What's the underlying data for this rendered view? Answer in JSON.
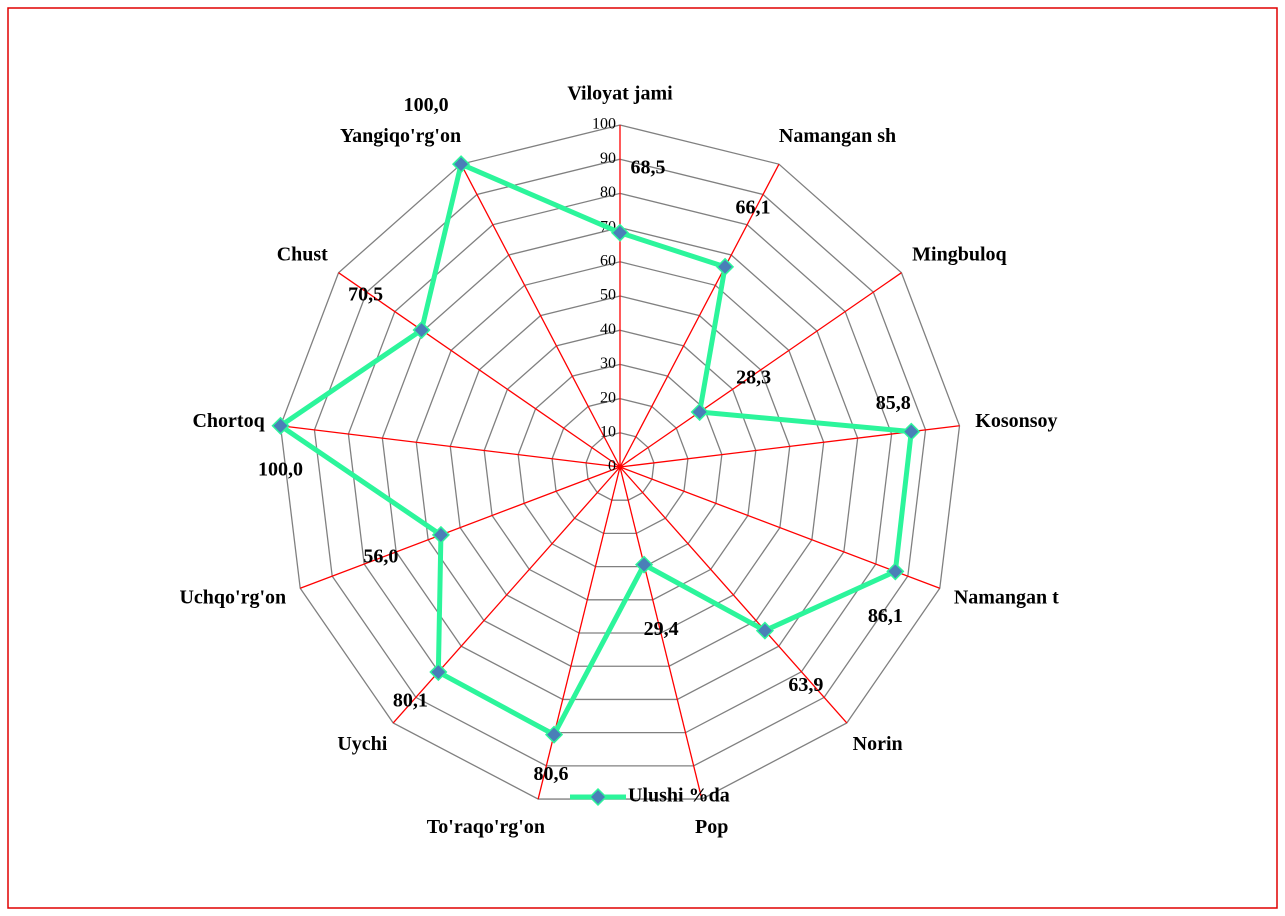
{
  "chart_data": {
    "type": "radar",
    "categories": [
      "Viloyat jami",
      "Namangan sh",
      "Mingbuloq",
      "Kosonsoy",
      "Namangan t",
      "Norin",
      "Pop",
      "To'raqo'rg'on",
      "Uychi",
      "Uchqo'rg'on",
      "Chortoq",
      "Chust",
      "Yangiqo'rg'on"
    ],
    "series": [
      {
        "name": "Ulushi %da",
        "color": "#2cf59b",
        "marker_color": "#4a7fb8",
        "values": [
          68.5,
          66.1,
          28.3,
          85.8,
          86.1,
          63.9,
          29.4,
          80.6,
          80.1,
          56.0,
          100.0,
          70.5,
          100.0
        ],
        "value_labels": [
          "68,5",
          "66,1",
          "28,3",
          "85,8",
          "86,1",
          "63,9",
          "29,4",
          "80,6",
          "80,1",
          "56,0",
          "100,0",
          "70,5",
          "100,0"
        ]
      }
    ],
    "ylim": [
      0,
      100
    ],
    "yticks": [
      0,
      10,
      20,
      30,
      40,
      50,
      60,
      70,
      80,
      90,
      100
    ],
    "grid": true,
    "grid_color": "#808080",
    "spoke_color": "#ff0000",
    "legend": "bottom"
  }
}
